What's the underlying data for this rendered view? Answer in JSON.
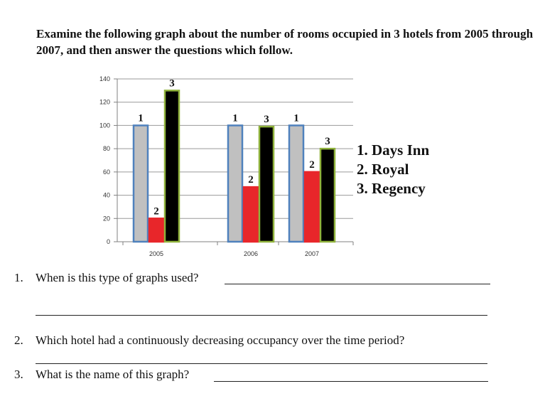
{
  "instructions": "Examine the following graph about the number of rooms occupied in 3 hotels from 2005 through 2007, and then answer the questions which follow.",
  "chart_data": {
    "type": "bar",
    "categories": [
      "2005",
      "2006",
      "2007"
    ],
    "series": [
      {
        "name": "Days Inn",
        "marker": "1",
        "color": "#c0c0c0",
        "border": "#4f81bd",
        "values": [
          100,
          100,
          100
        ]
      },
      {
        "name": "Royal",
        "marker": "2",
        "color": "#e8262a",
        "border": "#e8262a",
        "values": [
          20,
          47,
          60
        ]
      },
      {
        "name": "Regency",
        "marker": "3",
        "color": "#000000",
        "border": "#8fb23b",
        "values": [
          130,
          99,
          80
        ]
      }
    ],
    "ylim": [
      0,
      140
    ],
    "yticks": [
      0,
      20,
      40,
      60,
      80,
      100,
      120,
      140
    ],
    "legend": [
      "1. Days Inn",
      "2. Royal",
      "3. Regency"
    ],
    "legend_position": "right",
    "grid": true
  },
  "questions": [
    {
      "number": "1.",
      "text": "When is this type of graphs used?"
    },
    {
      "number": "2.",
      "text": "Which hotel had a continuously decreasing occupancy over the time period?"
    },
    {
      "number": "3.",
      "text": "What is the name of this graph?"
    }
  ]
}
